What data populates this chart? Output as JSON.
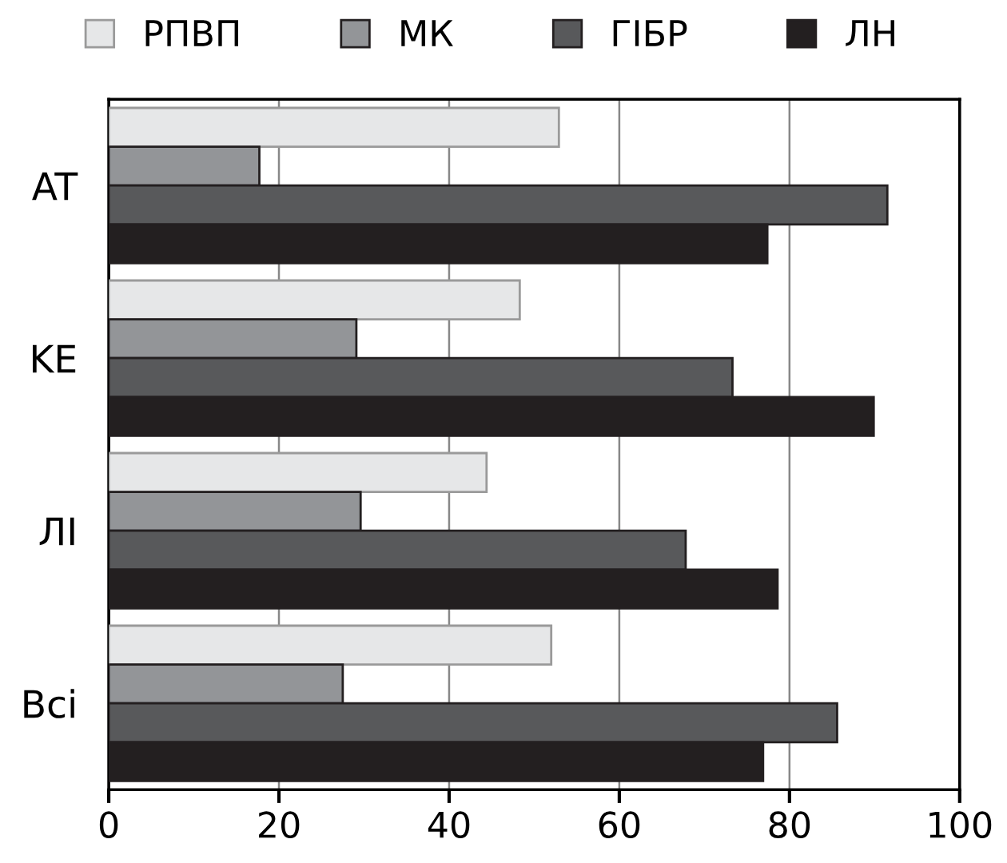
{
  "chart_data": {
    "type": "bar",
    "orientation": "horizontal",
    "categories": [
      "AT",
      "KE",
      "ЛІ",
      "Bci"
    ],
    "series": [
      {
        "name": "РПВП",
        "color": "#e6e7e8",
        "values": [
          52.9,
          48.3,
          44.4,
          52.0
        ]
      },
      {
        "name": "МК",
        "color": "#939598",
        "values": [
          17.7,
          29.1,
          29.6,
          27.5
        ]
      },
      {
        "name": "ГІБР",
        "color": "#58595b",
        "values": [
          91.5,
          73.3,
          67.8,
          85.6
        ]
      },
      {
        "name": "ЛН",
        "color": "#231f20",
        "values": [
          77.4,
          89.9,
          78.6,
          76.9
        ]
      }
    ],
    "xlim": [
      0,
      100
    ],
    "xticks": [
      0,
      20,
      40,
      60,
      80,
      100
    ],
    "grid": "x",
    "legend": "top"
  }
}
